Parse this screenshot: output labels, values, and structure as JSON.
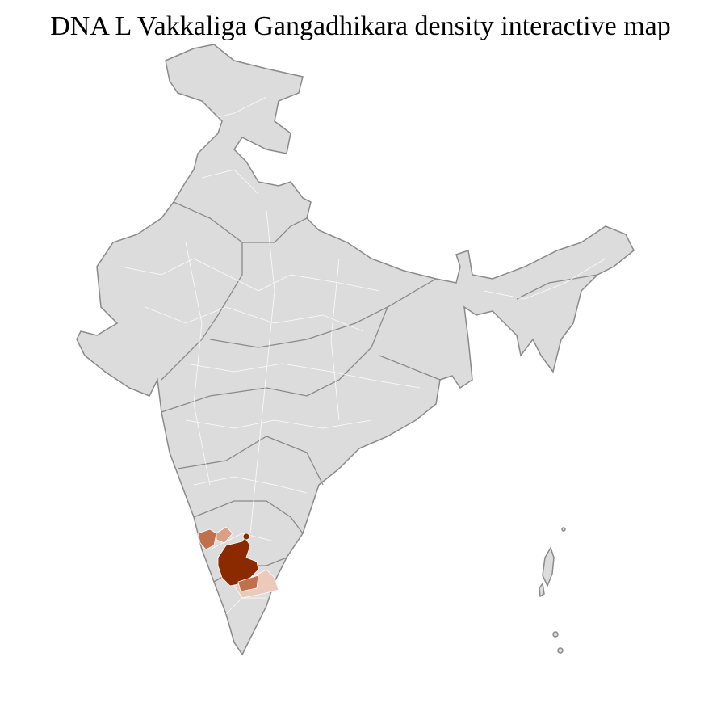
{
  "title": "DNA L Vakkaliga Gangadhikara density interactive map",
  "colors": {
    "base_fill": "#dcdcdc",
    "district_border": "#ffffff",
    "state_border": "#8a8a8a",
    "density_high": "#8b2a00",
    "density_mid": "#c0704c",
    "density_low": "#d9a088",
    "density_faint": "#eccabb"
  },
  "highlighted_regions": [
    {
      "density": "high"
    },
    {
      "density": "mid"
    },
    {
      "density": "low"
    },
    {
      "density": "faint"
    },
    {
      "density": "mid"
    },
    {
      "density": "high"
    }
  ]
}
